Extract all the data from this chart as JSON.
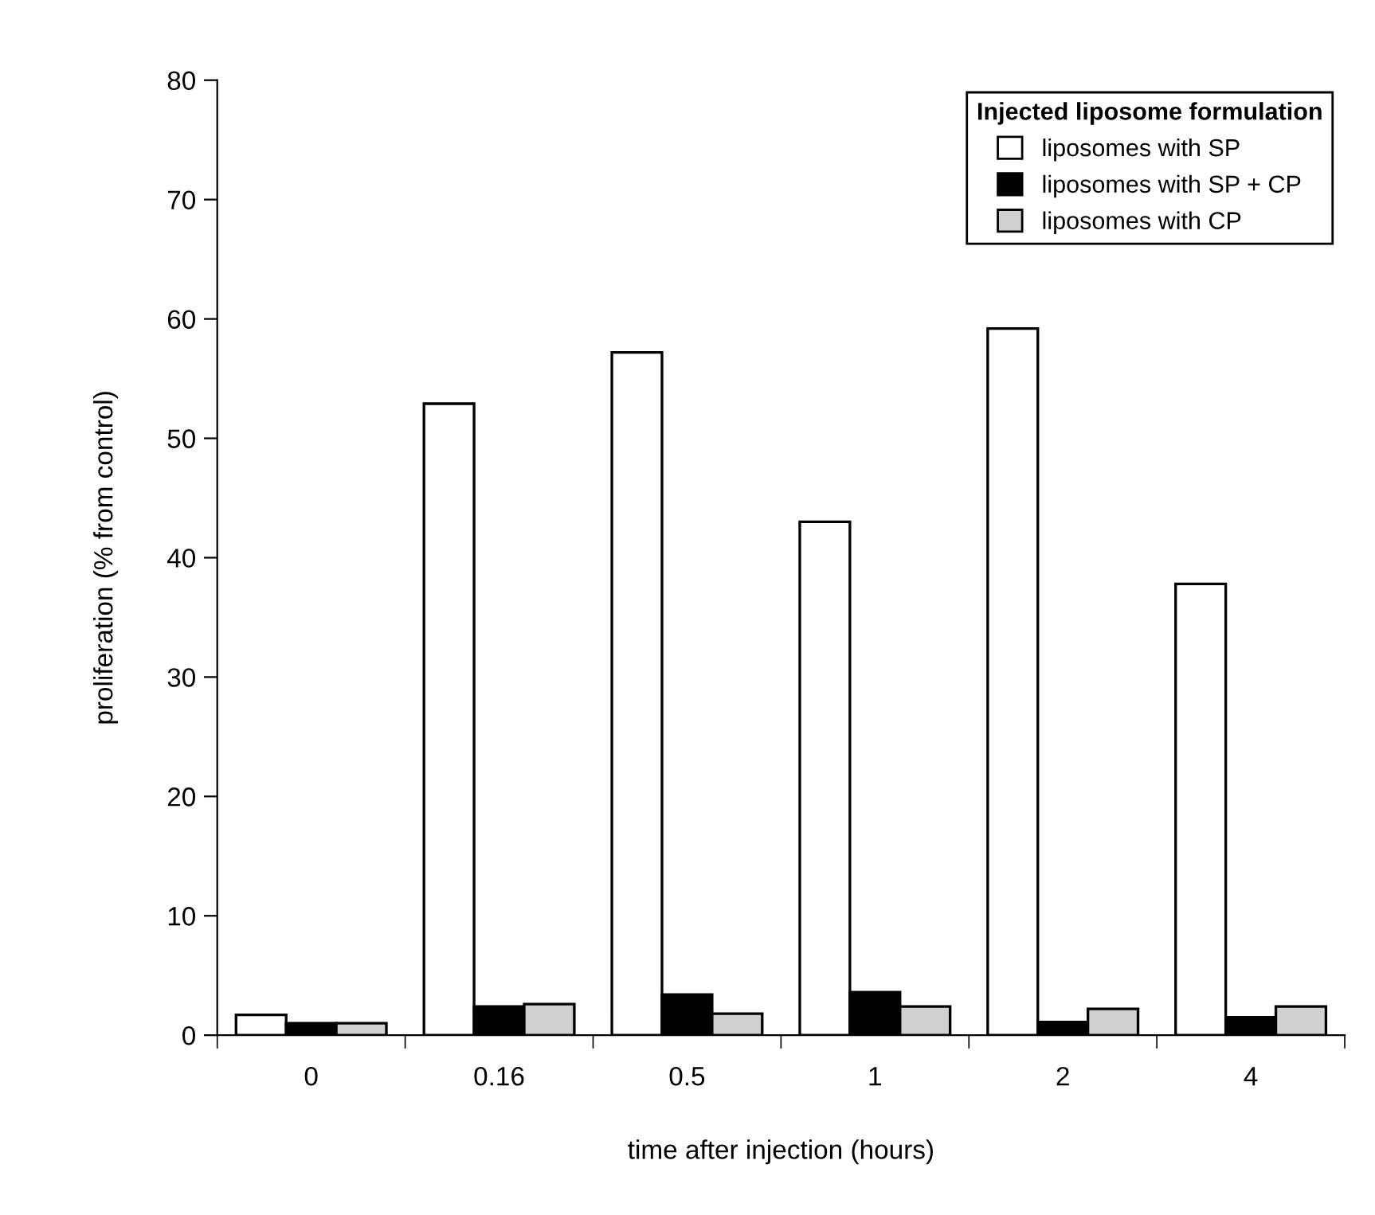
{
  "chart_data": {
    "type": "bar",
    "xlabel": "time after injection (hours)",
    "ylabel": "proliferation (% from control)",
    "legend_title": "Injected liposome formulation",
    "categories": [
      "0",
      "0.16",
      "0.5",
      "1",
      "2",
      "4"
    ],
    "series": [
      {
        "name": "liposomes with SP",
        "color": "#ffffff",
        "values": [
          1.7,
          52.9,
          57.2,
          43.0,
          59.2,
          37.8
        ]
      },
      {
        "name": "liposomes with SP + CP",
        "color": "#000000",
        "values": [
          1.0,
          2.4,
          3.4,
          3.6,
          1.1,
          1.5
        ]
      },
      {
        "name": "liposomes with CP",
        "color": "#d0d0d0",
        "values": [
          1.0,
          2.6,
          1.8,
          2.4,
          2.2,
          2.4
        ]
      }
    ],
    "ylim": [
      0,
      80
    ],
    "yticks": [
      0,
      10,
      20,
      30,
      40,
      50,
      60,
      70,
      80
    ],
    "grid": false,
    "legend": "top right"
  }
}
